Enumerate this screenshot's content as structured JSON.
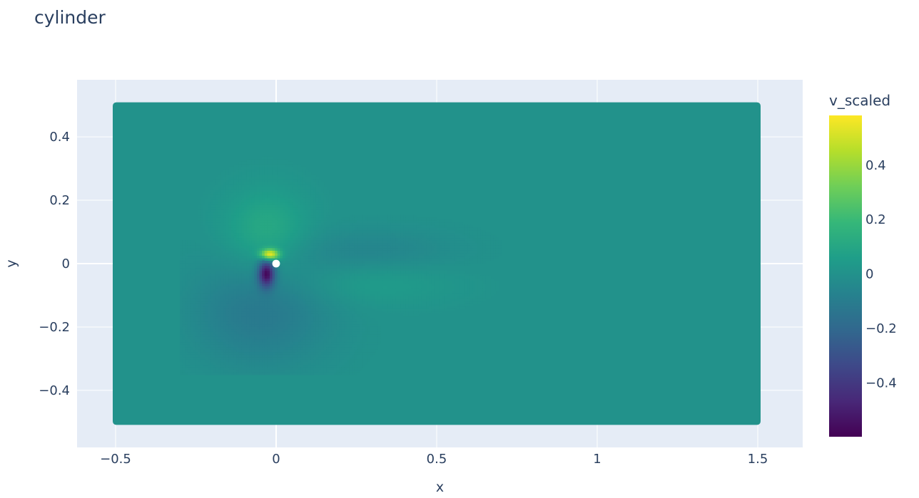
{
  "chart_data": {
    "type": "heatmap",
    "title": "cylinder",
    "xlabel": "x",
    "ylabel": "y",
    "xlim": [
      -0.62,
      1.64
    ],
    "ylim": [
      -0.58,
      0.58
    ],
    "x_ticks": [
      {
        "value": -0.5,
        "label": "−0.5"
      },
      {
        "value": 0,
        "label": "0"
      },
      {
        "value": 0.5,
        "label": "0.5"
      },
      {
        "value": 1,
        "label": "1"
      },
      {
        "value": 1.5,
        "label": "1.5"
      }
    ],
    "y_ticks": [
      {
        "value": 0.4,
        "label": "0.4"
      },
      {
        "value": 0.2,
        "label": "0.2"
      },
      {
        "value": 0,
        "label": "0"
      },
      {
        "value": -0.2,
        "label": "−0.2"
      },
      {
        "value": -0.4,
        "label": "−0.4"
      }
    ],
    "domain": {
      "x": [
        -0.5,
        1.5
      ],
      "y": [
        -0.5,
        0.5
      ]
    },
    "cylinder": {
      "center": [
        0,
        0
      ],
      "radius": 0.012
    },
    "background_value": 0.0,
    "features": [
      {
        "x": -0.02,
        "y": 0.03,
        "value": 0.55,
        "spread_x": 0.02,
        "spread_y": 0.012
      },
      {
        "x": -0.03,
        "y": 0.1,
        "value": 0.12,
        "spread_x": 0.09,
        "spread_y": 0.09
      },
      {
        "x": -0.03,
        "y": -0.03,
        "value": -0.55,
        "spread_x": 0.018,
        "spread_y": 0.03
      },
      {
        "x": -0.05,
        "y": -0.15,
        "value": -0.12,
        "spread_x": 0.15,
        "spread_y": 0.12
      },
      {
        "x": 0.3,
        "y": 0.04,
        "value": -0.06,
        "spread_x": 0.18,
        "spread_y": 0.05
      },
      {
        "x": 0.3,
        "y": -0.06,
        "value": 0.05,
        "spread_x": 0.18,
        "spread_y": 0.05
      }
    ],
    "colorscale": {
      "name": "Viridis",
      "title": "v_scaled",
      "min": -0.6,
      "max": 0.58,
      "ticks": [
        {
          "value": 0.4,
          "label": "0.4"
        },
        {
          "value": 0.2,
          "label": "0.2"
        },
        {
          "value": 0,
          "label": "0"
        },
        {
          "value": -0.2,
          "label": "−0.2"
        },
        {
          "value": -0.4,
          "label": "−0.4"
        }
      ],
      "stops": [
        "#440154",
        "#482878",
        "#3e4989",
        "#31688e",
        "#26828e",
        "#1f9e89",
        "#35b779",
        "#6ece58",
        "#b5de2b",
        "#fde725"
      ]
    },
    "colors": {
      "plot_bg": "#e5ecf6",
      "grid": "#ffffff",
      "text": "#2a3f5f"
    },
    "grid": true
  }
}
